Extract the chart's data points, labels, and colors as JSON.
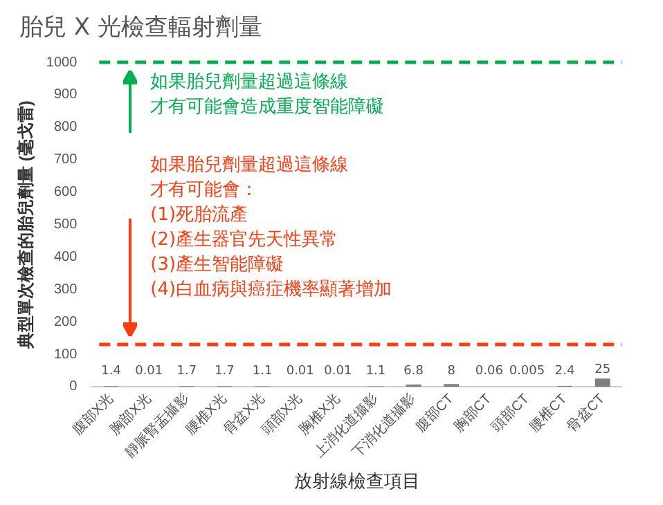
{
  "chart_data": {
    "type": "bar",
    "title": "胎兒 X 光檢查輻射劑量",
    "xlabel": "放射線檢查項目",
    "ylabel": "典型單次檢查的胎兒劑量 (毫戈雷)",
    "categories": [
      "腹部X光",
      "胸部X光",
      "靜脈腎盂攝影",
      "腰椎X光",
      "骨盆X光",
      "頭部X光",
      "胸椎X光",
      "上消化道攝影",
      "下消化道攝影",
      "腹部CT",
      "胸部CT",
      "頭部CT",
      "腰椎CT",
      "骨盆CT"
    ],
    "values": [
      1.4,
      0.01,
      1.7,
      1.7,
      1.1,
      0.01,
      0.01,
      1.1,
      6.8,
      8,
      0.06,
      0.005,
      2.4,
      25
    ],
    "color": "#7f7f7f",
    "data_labels": true,
    "ylim": [
      0,
      1000
    ],
    "yticks": [
      0,
      100,
      200,
      300,
      400,
      500,
      600,
      700,
      800,
      900,
      1000
    ],
    "grid": false,
    "legend": false,
    "ref_lines": [
      {
        "axis": "y",
        "value": 1000,
        "color": "#00b050",
        "line_style": "dashed"
      },
      {
        "axis": "y",
        "value": 130,
        "color": "#ff3b0f",
        "line_style": "dashed"
      }
    ],
    "annotations": [
      "如果胎兒劑量超過這條線",
      "才有可能會造成重度智能障礙",
      "如果胎兒劑量超過這條線",
      "才有可能會：",
      "(1)死胎流產",
      "(2)產生器官先天性異常",
      "(3)產生智能障礙",
      "(4)白血病與癌症機率顯著增加"
    ]
  }
}
